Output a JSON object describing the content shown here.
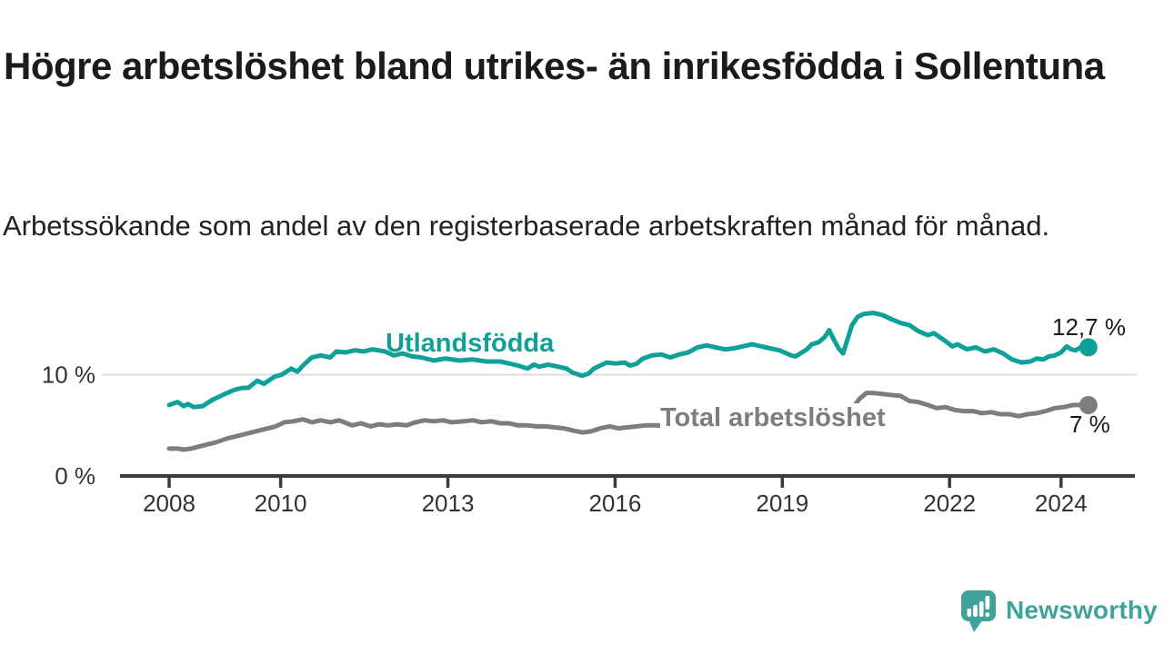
{
  "header": {
    "title": "Högre arbetslöshet bland utrikes- än inrikesfödda i Sollentuna",
    "subtitle": "Arbetssökande som andel av den registerbaserade arbetskraften månad för månad."
  },
  "footer": {
    "brand": "Newsworthy",
    "logo_icon": "newsworthy-speech-bubble-bar-chart-icon"
  },
  "colors": {
    "foreign_born": "#0FA197",
    "total": "#7D7D81",
    "axis": "#3B3B3B",
    "tick_text": "#333333",
    "gridline": "#DCDCDC",
    "title_text": "#1B1B1B",
    "value_text": "#1A1A1A",
    "brand": "#3FA39B"
  },
  "chart_data": {
    "type": "line",
    "title": "Högre arbetslöshet bland utrikes- än inrikesfödda i Sollentuna",
    "subtitle": "Arbetssökande som andel av den registerbaserade arbetskraften månad för månad.",
    "unit": "%",
    "grid": "horizontal-10-only",
    "legend_position": "inline-labels-on-lines",
    "x_axis": {
      "ticks": [
        {
          "year": 2008,
          "label": "2008"
        },
        {
          "year": 2010,
          "label": "2010"
        },
        {
          "year": 2013,
          "label": "2013"
        },
        {
          "year": 2016,
          "label": "2016"
        },
        {
          "year": 2019,
          "label": "2019"
        },
        {
          "year": 2022,
          "label": "2022"
        },
        {
          "year": 2024,
          "label": "2024"
        }
      ],
      "range": [
        2008,
        2024.6
      ]
    },
    "y_axis": {
      "ticks": [
        {
          "value": 10,
          "label": "10 %"
        },
        {
          "value": 0,
          "label": "0 %"
        }
      ],
      "range": [
        0,
        17.4
      ]
    },
    "series": [
      {
        "name": "Utlandsfödda",
        "color_key": "foreign_born",
        "end_label": "12,7 %",
        "end_value": 12.7,
        "points": [
          [
            2008.0,
            7.0
          ],
          [
            2008.15,
            7.3
          ],
          [
            2008.26,
            6.9
          ],
          [
            2008.34,
            7.1
          ],
          [
            2008.44,
            6.8
          ],
          [
            2008.6,
            6.9
          ],
          [
            2008.77,
            7.5
          ],
          [
            2009.0,
            8.1
          ],
          [
            2009.17,
            8.5
          ],
          [
            2009.32,
            8.7
          ],
          [
            2009.42,
            8.7
          ],
          [
            2009.58,
            9.4
          ],
          [
            2009.7,
            9.1
          ],
          [
            2009.89,
            9.8
          ],
          [
            2010.02,
            10.0
          ],
          [
            2010.19,
            10.6
          ],
          [
            2010.3,
            10.3
          ],
          [
            2010.4,
            10.9
          ],
          [
            2010.56,
            11.7
          ],
          [
            2010.72,
            11.9
          ],
          [
            2010.89,
            11.7
          ],
          [
            2011.0,
            12.3
          ],
          [
            2011.16,
            12.2
          ],
          [
            2011.33,
            12.4
          ],
          [
            2011.49,
            12.3
          ],
          [
            2011.65,
            12.5
          ],
          [
            2011.87,
            12.3
          ],
          [
            2012.03,
            11.9
          ],
          [
            2012.19,
            12.1
          ],
          [
            2012.36,
            11.8
          ],
          [
            2012.52,
            11.7
          ],
          [
            2012.75,
            11.4
          ],
          [
            2012.96,
            11.6
          ],
          [
            2013.2,
            11.4
          ],
          [
            2013.45,
            11.5
          ],
          [
            2013.69,
            11.3
          ],
          [
            2013.94,
            11.3
          ],
          [
            2014.1,
            11.1
          ],
          [
            2014.26,
            10.9
          ],
          [
            2014.43,
            10.6
          ],
          [
            2014.54,
            11.0
          ],
          [
            2014.64,
            10.8
          ],
          [
            2014.8,
            11.0
          ],
          [
            2014.97,
            10.8
          ],
          [
            2015.13,
            10.6
          ],
          [
            2015.24,
            10.2
          ],
          [
            2015.41,
            9.9
          ],
          [
            2015.52,
            10.1
          ],
          [
            2015.62,
            10.6
          ],
          [
            2015.73,
            10.9
          ],
          [
            2015.85,
            11.2
          ],
          [
            2016.01,
            11.1
          ],
          [
            2016.17,
            11.2
          ],
          [
            2016.27,
            10.9
          ],
          [
            2016.39,
            11.1
          ],
          [
            2016.5,
            11.6
          ],
          [
            2016.66,
            11.9
          ],
          [
            2016.83,
            12.0
          ],
          [
            2016.99,
            11.7
          ],
          [
            2017.15,
            12.0
          ],
          [
            2017.31,
            12.2
          ],
          [
            2017.48,
            12.7
          ],
          [
            2017.64,
            12.9
          ],
          [
            2017.8,
            12.7
          ],
          [
            2017.97,
            12.5
          ],
          [
            2018.13,
            12.6
          ],
          [
            2018.29,
            12.8
          ],
          [
            2018.46,
            13.0
          ],
          [
            2018.62,
            12.8
          ],
          [
            2018.78,
            12.6
          ],
          [
            2018.95,
            12.4
          ],
          [
            2019.16,
            11.9
          ],
          [
            2019.24,
            11.8
          ],
          [
            2019.35,
            12.2
          ],
          [
            2019.44,
            12.5
          ],
          [
            2019.53,
            13.0
          ],
          [
            2019.65,
            13.2
          ],
          [
            2019.76,
            13.7
          ],
          [
            2019.84,
            14.4
          ],
          [
            2019.92,
            13.5
          ],
          [
            2020.01,
            12.6
          ],
          [
            2020.09,
            12.1
          ],
          [
            2020.17,
            13.5
          ],
          [
            2020.25,
            14.9
          ],
          [
            2020.35,
            15.7
          ],
          [
            2020.46,
            16.0
          ],
          [
            2020.63,
            16.1
          ],
          [
            2020.79,
            15.9
          ],
          [
            2020.95,
            15.5
          ],
          [
            2021.12,
            15.1
          ],
          [
            2021.28,
            14.9
          ],
          [
            2021.44,
            14.3
          ],
          [
            2021.61,
            13.9
          ],
          [
            2021.72,
            14.1
          ],
          [
            2021.88,
            13.5
          ],
          [
            2022.05,
            12.8
          ],
          [
            2022.14,
            13.0
          ],
          [
            2022.31,
            12.5
          ],
          [
            2022.47,
            12.7
          ],
          [
            2022.63,
            12.3
          ],
          [
            2022.8,
            12.5
          ],
          [
            2022.96,
            12.1
          ],
          [
            2023.12,
            11.5
          ],
          [
            2023.29,
            11.2
          ],
          [
            2023.45,
            11.3
          ],
          [
            2023.56,
            11.6
          ],
          [
            2023.68,
            11.5
          ],
          [
            2023.78,
            11.8
          ],
          [
            2023.89,
            11.9
          ],
          [
            2024.0,
            12.2
          ],
          [
            2024.1,
            12.8
          ],
          [
            2024.18,
            12.5
          ],
          [
            2024.26,
            12.4
          ],
          [
            2024.38,
            12.8
          ],
          [
            2024.49,
            12.7
          ]
        ]
      },
      {
        "name": "Total arbetslöshet",
        "color_key": "total",
        "end_label": "7 %",
        "end_value": 7.0,
        "points": [
          [
            2008.0,
            2.7
          ],
          [
            2008.15,
            2.7
          ],
          [
            2008.26,
            2.6
          ],
          [
            2008.39,
            2.7
          ],
          [
            2008.6,
            3.0
          ],
          [
            2008.83,
            3.3
          ],
          [
            2009.04,
            3.7
          ],
          [
            2009.26,
            4.0
          ],
          [
            2009.48,
            4.3
          ],
          [
            2009.7,
            4.6
          ],
          [
            2009.91,
            4.9
          ],
          [
            2010.07,
            5.3
          ],
          [
            2010.23,
            5.4
          ],
          [
            2010.4,
            5.6
          ],
          [
            2010.56,
            5.3
          ],
          [
            2010.72,
            5.5
          ],
          [
            2010.89,
            5.3
          ],
          [
            2011.05,
            5.5
          ],
          [
            2011.28,
            5.0
          ],
          [
            2011.44,
            5.2
          ],
          [
            2011.61,
            4.9
          ],
          [
            2011.77,
            5.1
          ],
          [
            2011.93,
            5.0
          ],
          [
            2012.09,
            5.1
          ],
          [
            2012.26,
            5.0
          ],
          [
            2012.42,
            5.3
          ],
          [
            2012.58,
            5.5
          ],
          [
            2012.75,
            5.4
          ],
          [
            2012.91,
            5.5
          ],
          [
            2013.07,
            5.3
          ],
          [
            2013.29,
            5.4
          ],
          [
            2013.45,
            5.5
          ],
          [
            2013.61,
            5.3
          ],
          [
            2013.78,
            5.4
          ],
          [
            2013.94,
            5.2
          ],
          [
            2014.1,
            5.2
          ],
          [
            2014.26,
            5.0
          ],
          [
            2014.43,
            5.0
          ],
          [
            2014.59,
            4.9
          ],
          [
            2014.75,
            4.9
          ],
          [
            2014.92,
            4.8
          ],
          [
            2015.08,
            4.7
          ],
          [
            2015.24,
            4.5
          ],
          [
            2015.41,
            4.3
          ],
          [
            2015.57,
            4.4
          ],
          [
            2015.73,
            4.7
          ],
          [
            2015.9,
            4.9
          ],
          [
            2016.06,
            4.7
          ],
          [
            2016.22,
            4.8
          ],
          [
            2016.39,
            4.9
          ],
          [
            2016.55,
            5.0
          ],
          [
            2016.71,
            5.0
          ],
          [
            2017.04,
            4.9
          ],
          [
            2017.36,
            4.8
          ],
          [
            2017.69,
            4.7
          ],
          [
            2018.02,
            4.6
          ],
          [
            2018.34,
            4.6
          ],
          [
            2018.67,
            4.5
          ],
          [
            2019.0,
            4.5
          ],
          [
            2019.32,
            4.6
          ],
          [
            2019.65,
            4.8
          ],
          [
            2019.89,
            5.0
          ],
          [
            2020.06,
            5.2
          ],
          [
            2020.22,
            6.4
          ],
          [
            2020.38,
            7.6
          ],
          [
            2020.51,
            8.2
          ],
          [
            2020.63,
            8.2
          ],
          [
            2020.79,
            8.1
          ],
          [
            2020.95,
            8.0
          ],
          [
            2021.12,
            7.9
          ],
          [
            2021.28,
            7.4
          ],
          [
            2021.44,
            7.3
          ],
          [
            2021.61,
            7.0
          ],
          [
            2021.77,
            6.7
          ],
          [
            2021.93,
            6.8
          ],
          [
            2022.1,
            6.5
          ],
          [
            2022.26,
            6.4
          ],
          [
            2022.42,
            6.4
          ],
          [
            2022.58,
            6.2
          ],
          [
            2022.75,
            6.3
          ],
          [
            2022.91,
            6.1
          ],
          [
            2023.07,
            6.1
          ],
          [
            2023.24,
            5.9
          ],
          [
            2023.4,
            6.1
          ],
          [
            2023.56,
            6.2
          ],
          [
            2023.72,
            6.4
          ],
          [
            2023.89,
            6.7
          ],
          [
            2024.05,
            6.8
          ],
          [
            2024.21,
            7.0
          ],
          [
            2024.38,
            7.0
          ],
          [
            2024.49,
            7.0
          ]
        ]
      }
    ]
  }
}
